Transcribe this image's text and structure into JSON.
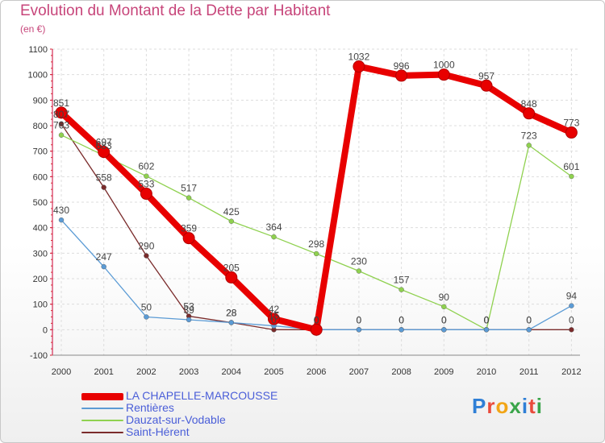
{
  "header": {
    "title": "Evolution du Montant de la Dette par Habitant",
    "subtitle": "(en €)"
  },
  "logo": {
    "text": "Proxiti",
    "colors": [
      "#2f7fd6",
      "#e94b3c",
      "#f2a516",
      "#3aa54a",
      "#2f7fd6",
      "#e94b3c",
      "#3aa54a"
    ]
  },
  "chart_data": {
    "type": "line",
    "title": "Evolution du Montant de la Dette par Habitant",
    "ylabel": "(en €)",
    "xlabel": "",
    "x": [
      "2000",
      "2001",
      "2002",
      "2003",
      "2004",
      "2005",
      "2006",
      "2007",
      "2008",
      "2009",
      "2010",
      "2011",
      "2012"
    ],
    "ylim": [
      -100,
      1100
    ],
    "yticks": [
      -100,
      0,
      100,
      200,
      300,
      400,
      500,
      600,
      700,
      800,
      900,
      1000,
      1100
    ],
    "grid": true,
    "legend_position": "bottom-left",
    "series": [
      {
        "name": "LA CHAPELLE-MARCOUSSE",
        "color": "#e80000",
        "values": [
          851,
          697,
          533,
          359,
          205,
          42,
          0,
          1032,
          996,
          1000,
          957,
          848,
          773
        ],
        "labels": [
          "851",
          "697",
          "533",
          "359",
          "205",
          "42",
          "0",
          "1032",
          "996",
          "1000",
          "957",
          "848",
          "773"
        ]
      },
      {
        "name": "Rentières",
        "color": "#5b9bd5",
        "values": [
          430,
          247,
          50,
          39,
          28,
          15,
          0,
          0,
          0,
          0,
          0,
          0,
          94
        ],
        "labels": [
          "430",
          "247",
          "50",
          "39",
          "28",
          "15",
          "0",
          "0",
          "0",
          "0",
          "0",
          "0",
          "94"
        ]
      },
      {
        "name": "Dauzat-sur-Vodable",
        "color": "#8fd14f",
        "values": [
          763,
          683,
          602,
          517,
          425,
          364,
          298,
          230,
          157,
          90,
          0,
          723,
          601
        ],
        "labels": [
          "763",
          "683",
          "602",
          "517",
          "425",
          "364",
          "298",
          "230",
          "157",
          "90",
          "0",
          "723",
          "601"
        ]
      },
      {
        "name": "Saint-Hérent",
        "color": "#7a2b2b",
        "values": [
          807,
          558,
          290,
          53,
          28,
          0,
          0,
          0,
          0,
          0,
          0,
          0,
          0
        ],
        "labels": [
          "807",
          "558",
          "290",
          "53",
          "28",
          "0",
          "0",
          "0",
          "0",
          "0",
          "0",
          "0",
          "0"
        ]
      }
    ]
  }
}
